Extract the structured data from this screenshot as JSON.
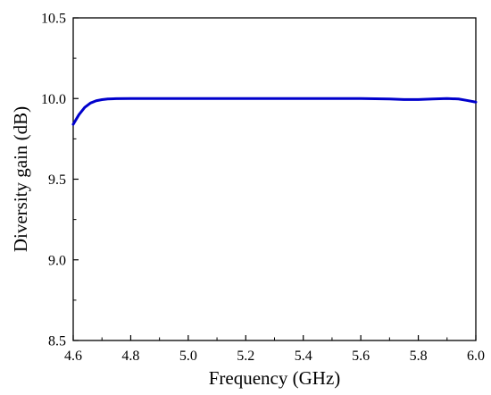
{
  "chart_data": {
    "type": "line",
    "title": "",
    "xlabel": "Frequency (GHz)",
    "ylabel": "Diversity gain (dB)",
    "xlim": [
      4.6,
      6.0
    ],
    "ylim": [
      8.5,
      10.5
    ],
    "x_ticks": [
      "4.6",
      "4.8",
      "5.0",
      "5.2",
      "5.4",
      "5.6",
      "5.8",
      "6.0"
    ],
    "y_ticks": [
      "8.5",
      "9.0",
      "9.5",
      "10.0",
      "10.5"
    ],
    "grid": false,
    "legend": "none",
    "series": [
      {
        "color": "#0000cc",
        "x": [
          4.6,
          4.62,
          4.64,
          4.66,
          4.68,
          4.7,
          4.72,
          4.75,
          4.8,
          4.9,
          5.0,
          5.2,
          5.4,
          5.6,
          5.7,
          5.75,
          5.8,
          5.85,
          5.9,
          5.94,
          5.97,
          6.0
        ],
        "y": [
          9.84,
          9.9,
          9.945,
          9.972,
          9.986,
          9.993,
          9.997,
          9.999,
          10.0,
          10.0,
          10.0,
          10.0,
          10.0,
          10.0,
          9.997,
          9.994,
          9.994,
          9.997,
          10.0,
          9.997,
          9.988,
          9.978
        ]
      }
    ]
  }
}
